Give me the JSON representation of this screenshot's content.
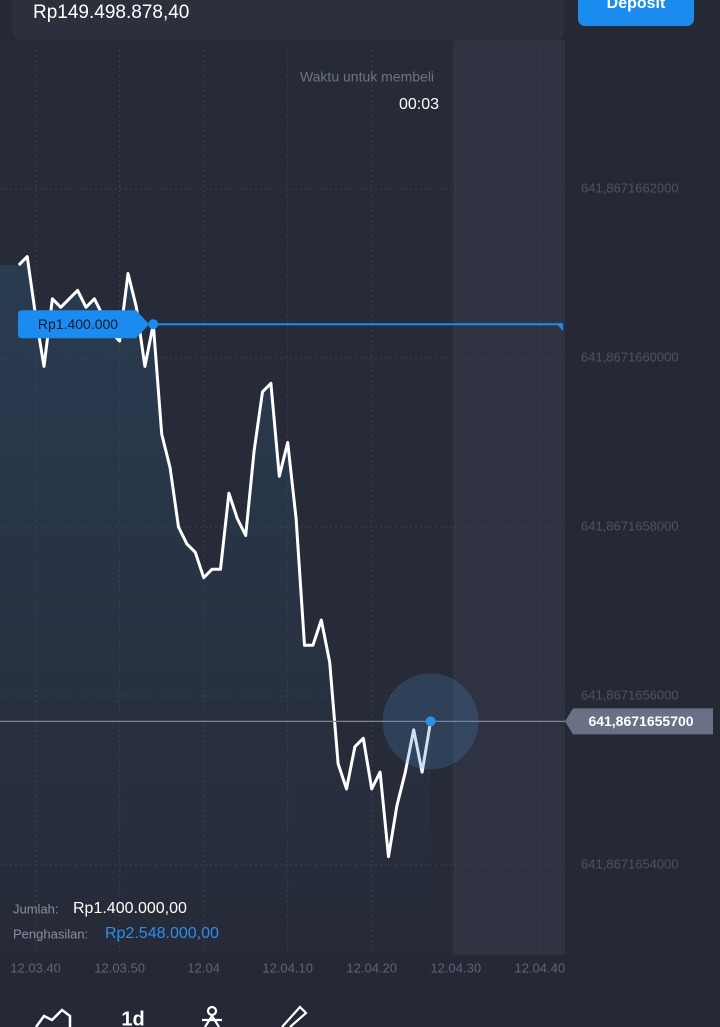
{
  "header": {
    "balance": "Rp149.498.878,40",
    "deposit_button": "Deposit"
  },
  "timer": {
    "label": "Waktu untuk membeli",
    "value": "00:03"
  },
  "chart_data": {
    "type": "line",
    "color": "#ffffff",
    "x": [
      "12.03.38",
      "12.03.39",
      "12.03.40",
      "12.03.41",
      "12.03.42",
      "12.03.43",
      "12.03.44",
      "12.03.45",
      "12.03.46",
      "12.03.47",
      "12.03.48",
      "12.03.49",
      "12.03.50",
      "12.03.51",
      "12.03.52",
      "12.03.53",
      "12.03.54",
      "12.03.55",
      "12.03.56",
      "12.03.57",
      "12.03.58",
      "12.03.59",
      "12.04.00",
      "12.04.01",
      "12.04.02",
      "12.04.03",
      "12.04.04",
      "12.04.05",
      "12.04.06",
      "12.04.07",
      "12.04.08",
      "12.04.09",
      "12.04.10",
      "12.04.11",
      "12.04.12",
      "12.04.13",
      "12.04.14",
      "12.04.15",
      "12.04.16",
      "12.04.17",
      "12.04.18",
      "12.04.19",
      "12.04.20",
      "12.04.21",
      "12.04.22",
      "12.04.23",
      "12.04.24",
      "12.04.25",
      "12.04.26",
      "12.04.27"
    ],
    "values": [
      641.86716611,
      641.86716612,
      641.86716605,
      641.86716599,
      641.86716607,
      641.86716606,
      641.86716607,
      641.86716608,
      641.86716606,
      641.86716607,
      641.86716605,
      641.86716603,
      641.86716602,
      641.8671661,
      641.86716606,
      641.86716599,
      641.86716604,
      641.86716591,
      641.86716587,
      641.8671658,
      641.86716578,
      641.86716577,
      641.86716574,
      641.86716575,
      641.86716575,
      641.86716584,
      641.86716581,
      641.86716579,
      641.86716589,
      641.86716596,
      641.86716597,
      641.86716586,
      641.8671659,
      641.86716581,
      641.86716566,
      641.86716566,
      641.86716569,
      641.86716564,
      641.86716552,
      641.86716549,
      641.86716554,
      641.86716555,
      641.86716549,
      641.86716551,
      641.86716541,
      641.86716547,
      641.86716551,
      641.86716556,
      641.86716551,
      641.86716557
    ],
    "xlim": [
      "12.03.36",
      "12.04.43"
    ],
    "xticks": [
      "12.03.40",
      "12.03.50",
      "12.04",
      "12.04.10",
      "12.04.20",
      "12.04.30",
      "12.04.40"
    ],
    "ylim": [
      641.8671653,
      641.8671664
    ],
    "yticks": [
      {
        "value": 641.8671662,
        "label": "641,8671662000"
      },
      {
        "value": 641.867166,
        "label": "641,8671660000"
      },
      {
        "value": 641.8671658,
        "label": "641,8671658000"
      },
      {
        "value": 641.8671656,
        "label": "641,8671656000"
      },
      {
        "value": 641.8671654,
        "label": "641,8671654000"
      }
    ],
    "grid": true,
    "current_price": {
      "value": 641.86716557,
      "label": "641,8671655700"
    },
    "trade": {
      "time": "12.03.54",
      "price": 641.86716604,
      "label": "Rp1.400.000"
    }
  },
  "trade_info": {
    "amount_label": "Jumlah:",
    "amount": "Rp1.400.000,00",
    "payout_label": "Penghasilan:",
    "payout": "Rp2.548.000,00"
  },
  "toolbar": {
    "timeframe": "1d"
  }
}
